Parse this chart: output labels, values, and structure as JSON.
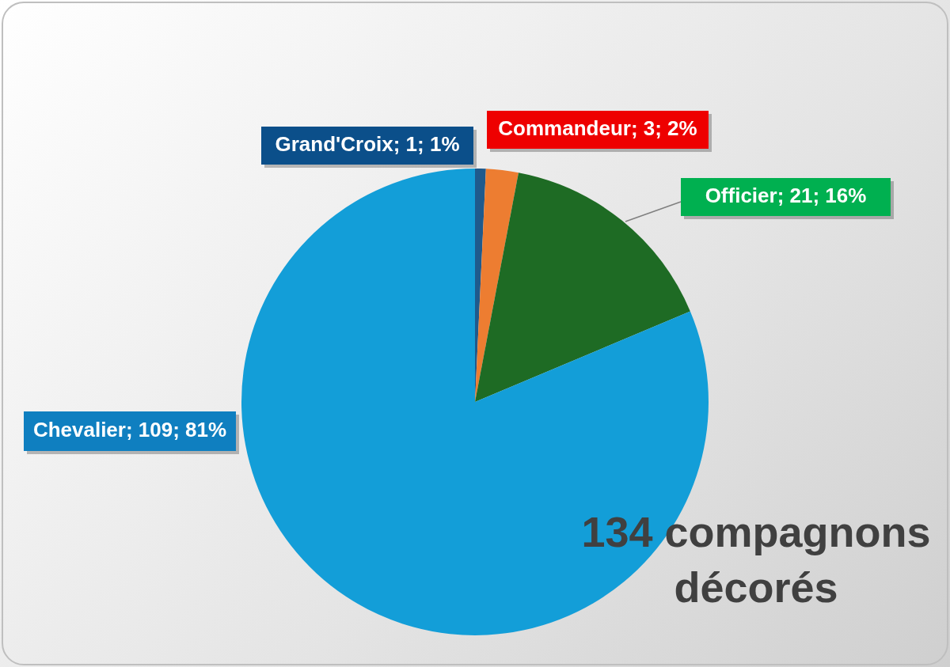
{
  "chart_data": {
    "type": "pie",
    "categories": [
      "Grand'Croix",
      "Commandeur",
      "Officier",
      "Chevalier"
    ],
    "values": [
      1,
      3,
      21,
      109
    ],
    "colors": [
      "#1f5a8c",
      "#ed7d31",
      "#1e6b24",
      "#139ed8"
    ],
    "value_labels": [
      "; 1; 1%",
      "; 3; 2%",
      "; 21; 16%",
      "; 109; 81%"
    ],
    "annotations": [
      "134 compagnons décorés"
    ],
    "legend": false
  }
}
